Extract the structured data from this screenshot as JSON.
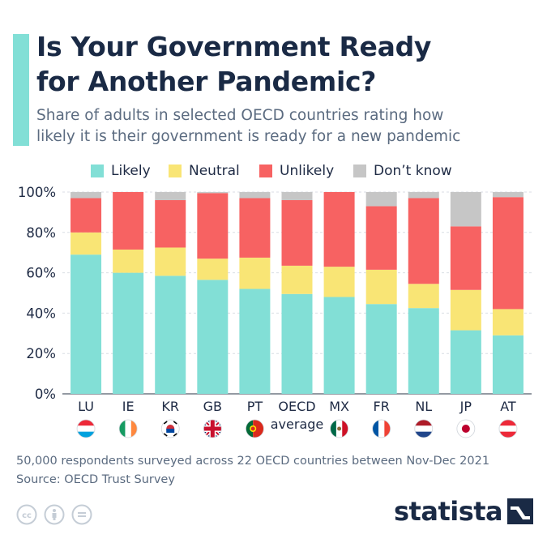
{
  "title": "Is Your Government Ready\nfor Another Pandemic?",
  "subtitle": "Share of adults in selected OECD countries rating how\nlikely it is their government is ready for a new pandemic",
  "legend": [
    {
      "label": "Likely",
      "color": "#82dfd6"
    },
    {
      "label": "Neutral",
      "color": "#f9e575"
    },
    {
      "label": "Unlikely",
      "color": "#f76262"
    },
    {
      "label": "Don’t know",
      "color": "#c6c6c6"
    }
  ],
  "note": "50,000 respondents surveyed across 22 OECD countries between Nov-Dec 2021",
  "source": "Source: OECD Trust Survey",
  "logo_text": "statista",
  "cc_icons": [
    "cc-icon",
    "by-icon",
    "nd-icon"
  ],
  "chart_data": {
    "type": "bar",
    "stacked": true,
    "categories": [
      "LU",
      "IE",
      "KR",
      "GB",
      "PT",
      "OECD\naverage",
      "MX",
      "FR",
      "NL",
      "JP",
      "AT"
    ],
    "flags": [
      "luxembourg-flag-icon",
      "ireland-flag-icon",
      "south-korea-flag-icon",
      "uk-flag-icon",
      "portugal-flag-icon",
      "",
      "mexico-flag-icon",
      "france-flag-icon",
      "netherlands-flag-icon",
      "japan-flag-icon",
      "austria-flag-icon"
    ],
    "series": [
      {
        "name": "Likely",
        "color": "#82dfd6",
        "values": [
          69,
          60,
          58.5,
          56.5,
          52,
          49.5,
          48,
          44.5,
          42.5,
          31.5,
          29
        ]
      },
      {
        "name": "Neutral",
        "color": "#f9e575",
        "values": [
          11,
          11.5,
          14,
          10.5,
          15.5,
          14,
          15,
          17,
          12,
          20,
          13
        ]
      },
      {
        "name": "Unlikely",
        "color": "#f76262",
        "values": [
          17,
          28.5,
          23.5,
          32.5,
          29.5,
          32.5,
          37,
          31.5,
          42.5,
          31.5,
          55.5
        ]
      },
      {
        "name": "Don’t know",
        "color": "#c6c6c6",
        "values": [
          3,
          0,
          4,
          0.5,
          3,
          4,
          0,
          7,
          3,
          17,
          2.5
        ]
      }
    ],
    "ylim": [
      0,
      100
    ],
    "yticks": [
      "0%",
      "20%",
      "40%",
      "60%",
      "80%",
      "100%"
    ],
    "grid": true,
    "legend_position": "top"
  }
}
